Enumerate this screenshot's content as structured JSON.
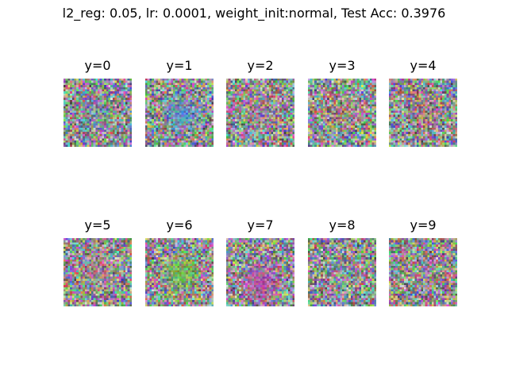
{
  "figure": {
    "suptitle": "l2_reg: 0.05, lr: 0.0001, weight_init:normal, Test Acc: 0.3976"
  },
  "panels": [
    {
      "label": "y=0",
      "tint": "#3aa7c9"
    },
    {
      "label": "y=1",
      "tint": "#1d8cff"
    },
    {
      "label": "y=2",
      "tint": "#c43e9a"
    },
    {
      "label": "y=3",
      "tint": "#c34a3a"
    },
    {
      "label": "y=4",
      "tint": "#d24040"
    },
    {
      "label": "y=5",
      "tint": "#e24d76"
    },
    {
      "label": "y=6",
      "tint": "#5ad41a"
    },
    {
      "label": "y=7",
      "tint": "#c119b8"
    },
    {
      "label": "y=8",
      "tint": "#8ca6c2"
    },
    {
      "label": "y=9",
      "tint": "#9a76a8"
    }
  ],
  "grid": {
    "rows": 2,
    "cols": 5,
    "pixels_per_side": 32
  }
}
